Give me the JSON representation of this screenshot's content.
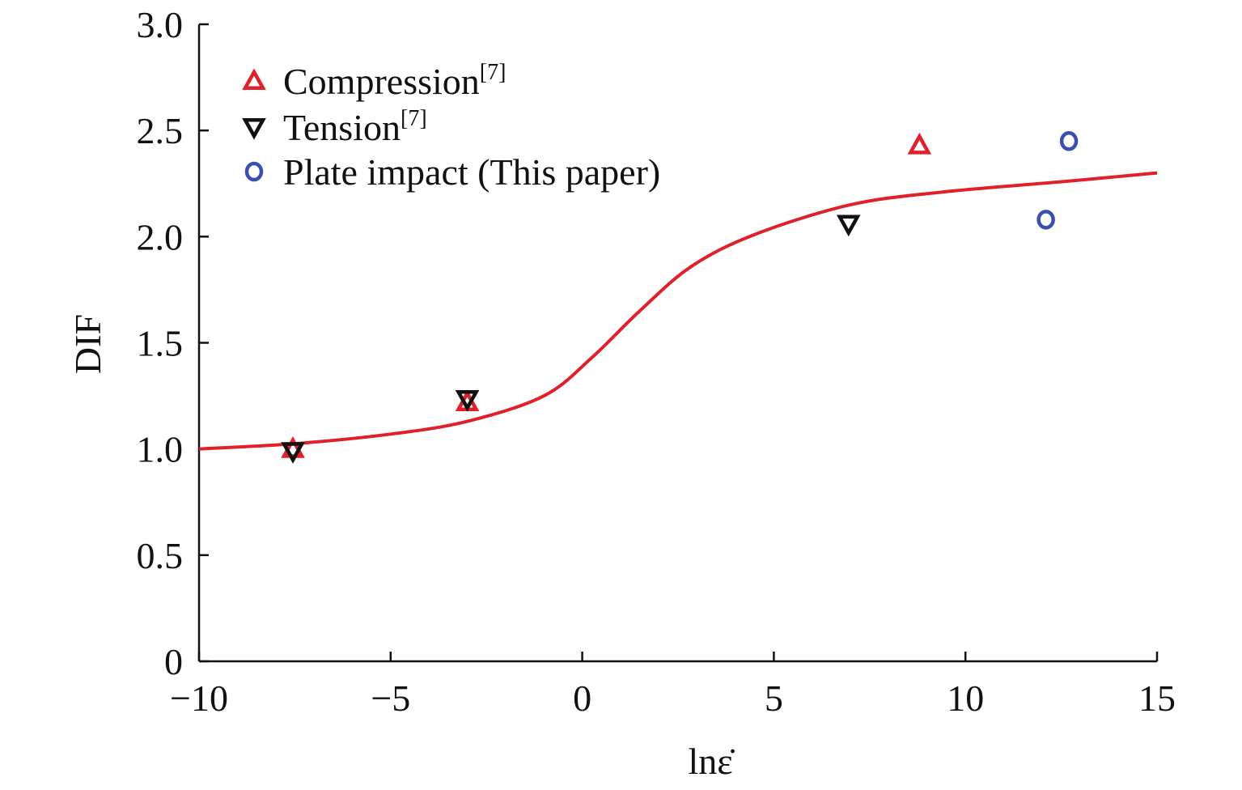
{
  "chart_data": {
    "type": "scatter",
    "title": "",
    "xlabel": "lnε̇",
    "ylabel": "DIF",
    "xlim": [
      -10,
      15
    ],
    "ylim": [
      0,
      3.0
    ],
    "xticks": [
      -10,
      -5,
      0,
      5,
      10,
      15
    ],
    "xtick_labels": [
      "−10",
      "−5",
      "0",
      "5",
      "10",
      "15"
    ],
    "yticks": [
      0,
      0.5,
      1.0,
      1.5,
      2.0,
      2.5,
      3.0
    ],
    "ytick_labels": [
      "0",
      "0.5",
      "1.0",
      "1.5",
      "2.0",
      "2.5",
      "3.0"
    ],
    "grid": false,
    "legend_position": "top-left",
    "series": [
      {
        "name": "Compression",
        "sup": "[7]",
        "marker": "triangle-up",
        "color": "#e0202a",
        "x": [
          -7.55,
          -3.0,
          8.8
        ],
        "y": [
          1.0,
          1.22,
          2.43
        ]
      },
      {
        "name": "Tension",
        "sup": "[7]",
        "marker": "triangle-down",
        "color": "#111111",
        "x": [
          -7.55,
          -3.0,
          6.95
        ],
        "y": [
          0.99,
          1.235,
          2.06
        ]
      },
      {
        "name": "Plate impact (This paper)",
        "sup": "",
        "marker": "circle",
        "color": "#3a4fb0",
        "x": [
          12.7,
          12.1
        ],
        "y": [
          2.45,
          2.08
        ]
      }
    ],
    "fit_curve": {
      "color": "#e0202a",
      "x": [
        -10,
        -7.5,
        -5,
        -3,
        -1,
        0.25,
        1.5,
        2.85,
        4.5,
        7,
        9.4,
        12.6,
        15
      ],
      "y": [
        1.0,
        1.025,
        1.07,
        1.13,
        1.25,
        1.43,
        1.65,
        1.86,
        2.01,
        2.15,
        2.21,
        2.26,
        2.3
      ]
    }
  }
}
